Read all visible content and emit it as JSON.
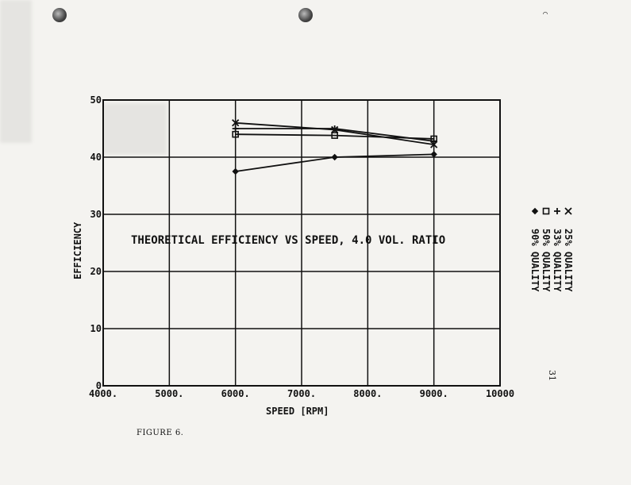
{
  "page": {
    "caption": "FIGURE 6.",
    "page_number": "31"
  },
  "chart_data": {
    "type": "line",
    "title": "THEORETICAL EFFICIENCY VS SPEED, 4.0 VOL. RATIO",
    "xlabel": "SPEED [RPM]",
    "ylabel": "EFFICIENCY",
    "xlim": [
      4000,
      10000
    ],
    "ylim": [
      0,
      50
    ],
    "x_ticks": [
      4000,
      5000,
      6000,
      7000,
      8000,
      9000,
      10000
    ],
    "x_tick_labels": [
      "4000.",
      "5000.",
      "6000.",
      "7000.",
      "8000.",
      "9000.",
      "10000"
    ],
    "y_ticks": [
      0,
      10,
      20,
      30,
      40,
      50
    ],
    "y_tick_labels": [
      "0",
      "10",
      "20",
      "30",
      "40",
      "50"
    ],
    "grid": true,
    "legend_position": "right, rotated",
    "series": [
      {
        "name": "25% QUALITY",
        "marker": "x",
        "x": [
          6000,
          7500,
          9000
        ],
        "y": [
          46.0,
          44.8,
          42.2
        ]
      },
      {
        "name": "33% QUALITY",
        "marker": "+",
        "x": [
          6000,
          7500,
          9000
        ],
        "y": [
          45.0,
          45.0,
          42.8
        ]
      },
      {
        "name": "50% QUALITY",
        "marker": "square",
        "x": [
          6000,
          7500,
          9000
        ],
        "y": [
          44.0,
          43.8,
          43.2
        ]
      },
      {
        "name": "90% QUALITY",
        "marker": "diamond",
        "x": [
          6000,
          7500,
          9000
        ],
        "y": [
          37.5,
          40.0,
          40.5
        ]
      }
    ]
  }
}
